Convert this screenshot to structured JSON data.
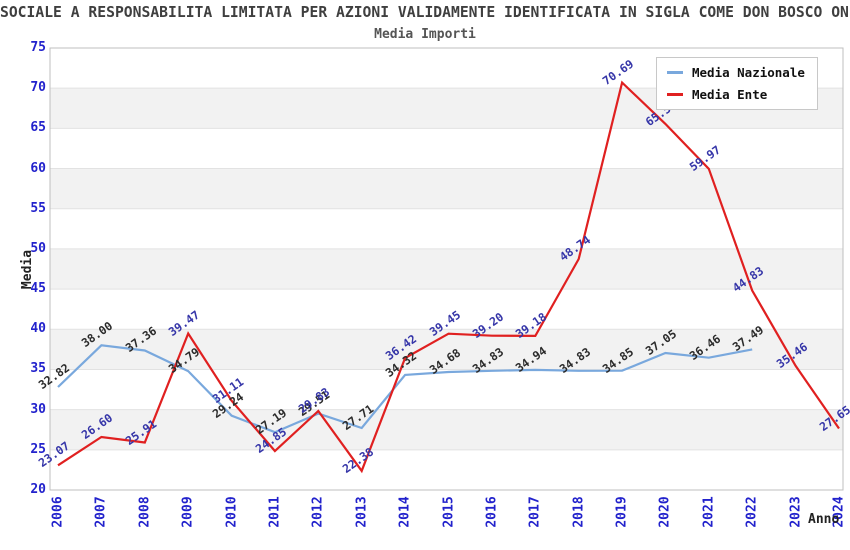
{
  "title": "SOCIALE A RESPONSABILITA LIMITATA PER AZIONI VALIDAMENTE IDENTIFICATA IN SIGLA COME DON BOSCO ON",
  "subtitle": "Media Importi",
  "axes": {
    "y_title": "Media",
    "x_title": "Anno",
    "y_ticks": [
      20,
      25,
      30,
      35,
      40,
      45,
      50,
      55,
      60,
      65,
      70,
      75
    ],
    "x_ticks": [
      "2006",
      "2007",
      "2008",
      "2009",
      "2010",
      "2011",
      "2012",
      "2013",
      "2014",
      "2015",
      "2016",
      "2017",
      "2018",
      "2019",
      "2020",
      "2021",
      "2022",
      "2023",
      "2024"
    ],
    "tick_color": "#2222cc"
  },
  "legend": {
    "position": "top-right",
    "items": [
      {
        "label": "Media Nazionale",
        "color": "#79a8dd"
      },
      {
        "label": "Media Ente",
        "color": "#e02020"
      }
    ]
  },
  "chart_data": {
    "type": "line",
    "title": "Media Importi",
    "xlabel": "Anno",
    "ylabel": "Media",
    "x": [
      2006,
      2007,
      2008,
      2009,
      2010,
      2011,
      2012,
      2013,
      2014,
      2015,
      2016,
      2017,
      2018,
      2019,
      2020,
      2021,
      2022,
      2023,
      2024
    ],
    "series": [
      {
        "name": "Media Nazionale",
        "color": "#79a8dd",
        "label_color": "#2b2b2b",
        "values": [
          32.82,
          38.0,
          37.36,
          34.79,
          29.24,
          27.19,
          29.51,
          27.71,
          34.32,
          34.68,
          34.83,
          34.94,
          34.83,
          34.85,
          37.05,
          36.46,
          37.49,
          null,
          null
        ]
      },
      {
        "name": "Media Ente",
        "color": "#e02020",
        "label_color": "#3535a8",
        "values": [
          23.07,
          26.6,
          25.91,
          39.47,
          31.11,
          24.85,
          29.83,
          22.38,
          36.42,
          39.45,
          39.2,
          39.18,
          48.74,
          70.69,
          65.56,
          59.97,
          44.83,
          35.46,
          27.65
        ]
      }
    ],
    "ylim": [
      20,
      75
    ],
    "y_step": 5,
    "grid": "alternating-horizontal-bands",
    "band_fill": "#f2f2f2",
    "gridline_color": "#e2e2e2",
    "border_color": "#bfbfbf",
    "legend_position": "top-right",
    "data_labels": "all-points-2-decimals"
  }
}
